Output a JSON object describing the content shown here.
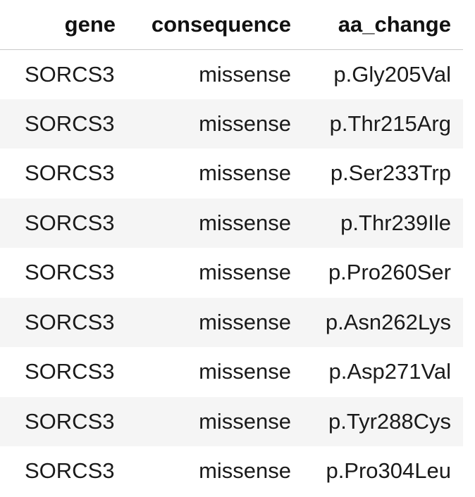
{
  "table": {
    "columns": [
      "gene",
      "consequence",
      "aa_change"
    ],
    "rows": [
      {
        "gene": "SORCS3",
        "consequence": "missense",
        "aa_change": "p.Gly205Val"
      },
      {
        "gene": "SORCS3",
        "consequence": "missense",
        "aa_change": "p.Thr215Arg"
      },
      {
        "gene": "SORCS3",
        "consequence": "missense",
        "aa_change": "p.Ser233Trp"
      },
      {
        "gene": "SORCS3",
        "consequence": "missense",
        "aa_change": "p.Thr239Ile"
      },
      {
        "gene": "SORCS3",
        "consequence": "missense",
        "aa_change": "p.Pro260Ser"
      },
      {
        "gene": "SORCS3",
        "consequence": "missense",
        "aa_change": "p.Asn262Lys"
      },
      {
        "gene": "SORCS3",
        "consequence": "missense",
        "aa_change": "p.Asp271Val"
      },
      {
        "gene": "SORCS3",
        "consequence": "missense",
        "aa_change": "p.Tyr288Cys"
      },
      {
        "gene": "SORCS3",
        "consequence": "missense",
        "aa_change": "p.Pro304Leu"
      }
    ]
  },
  "colors": {
    "stripe": "#f5f5f5",
    "header_rule": "#c9c9c9",
    "text": "#1a1a1a"
  }
}
